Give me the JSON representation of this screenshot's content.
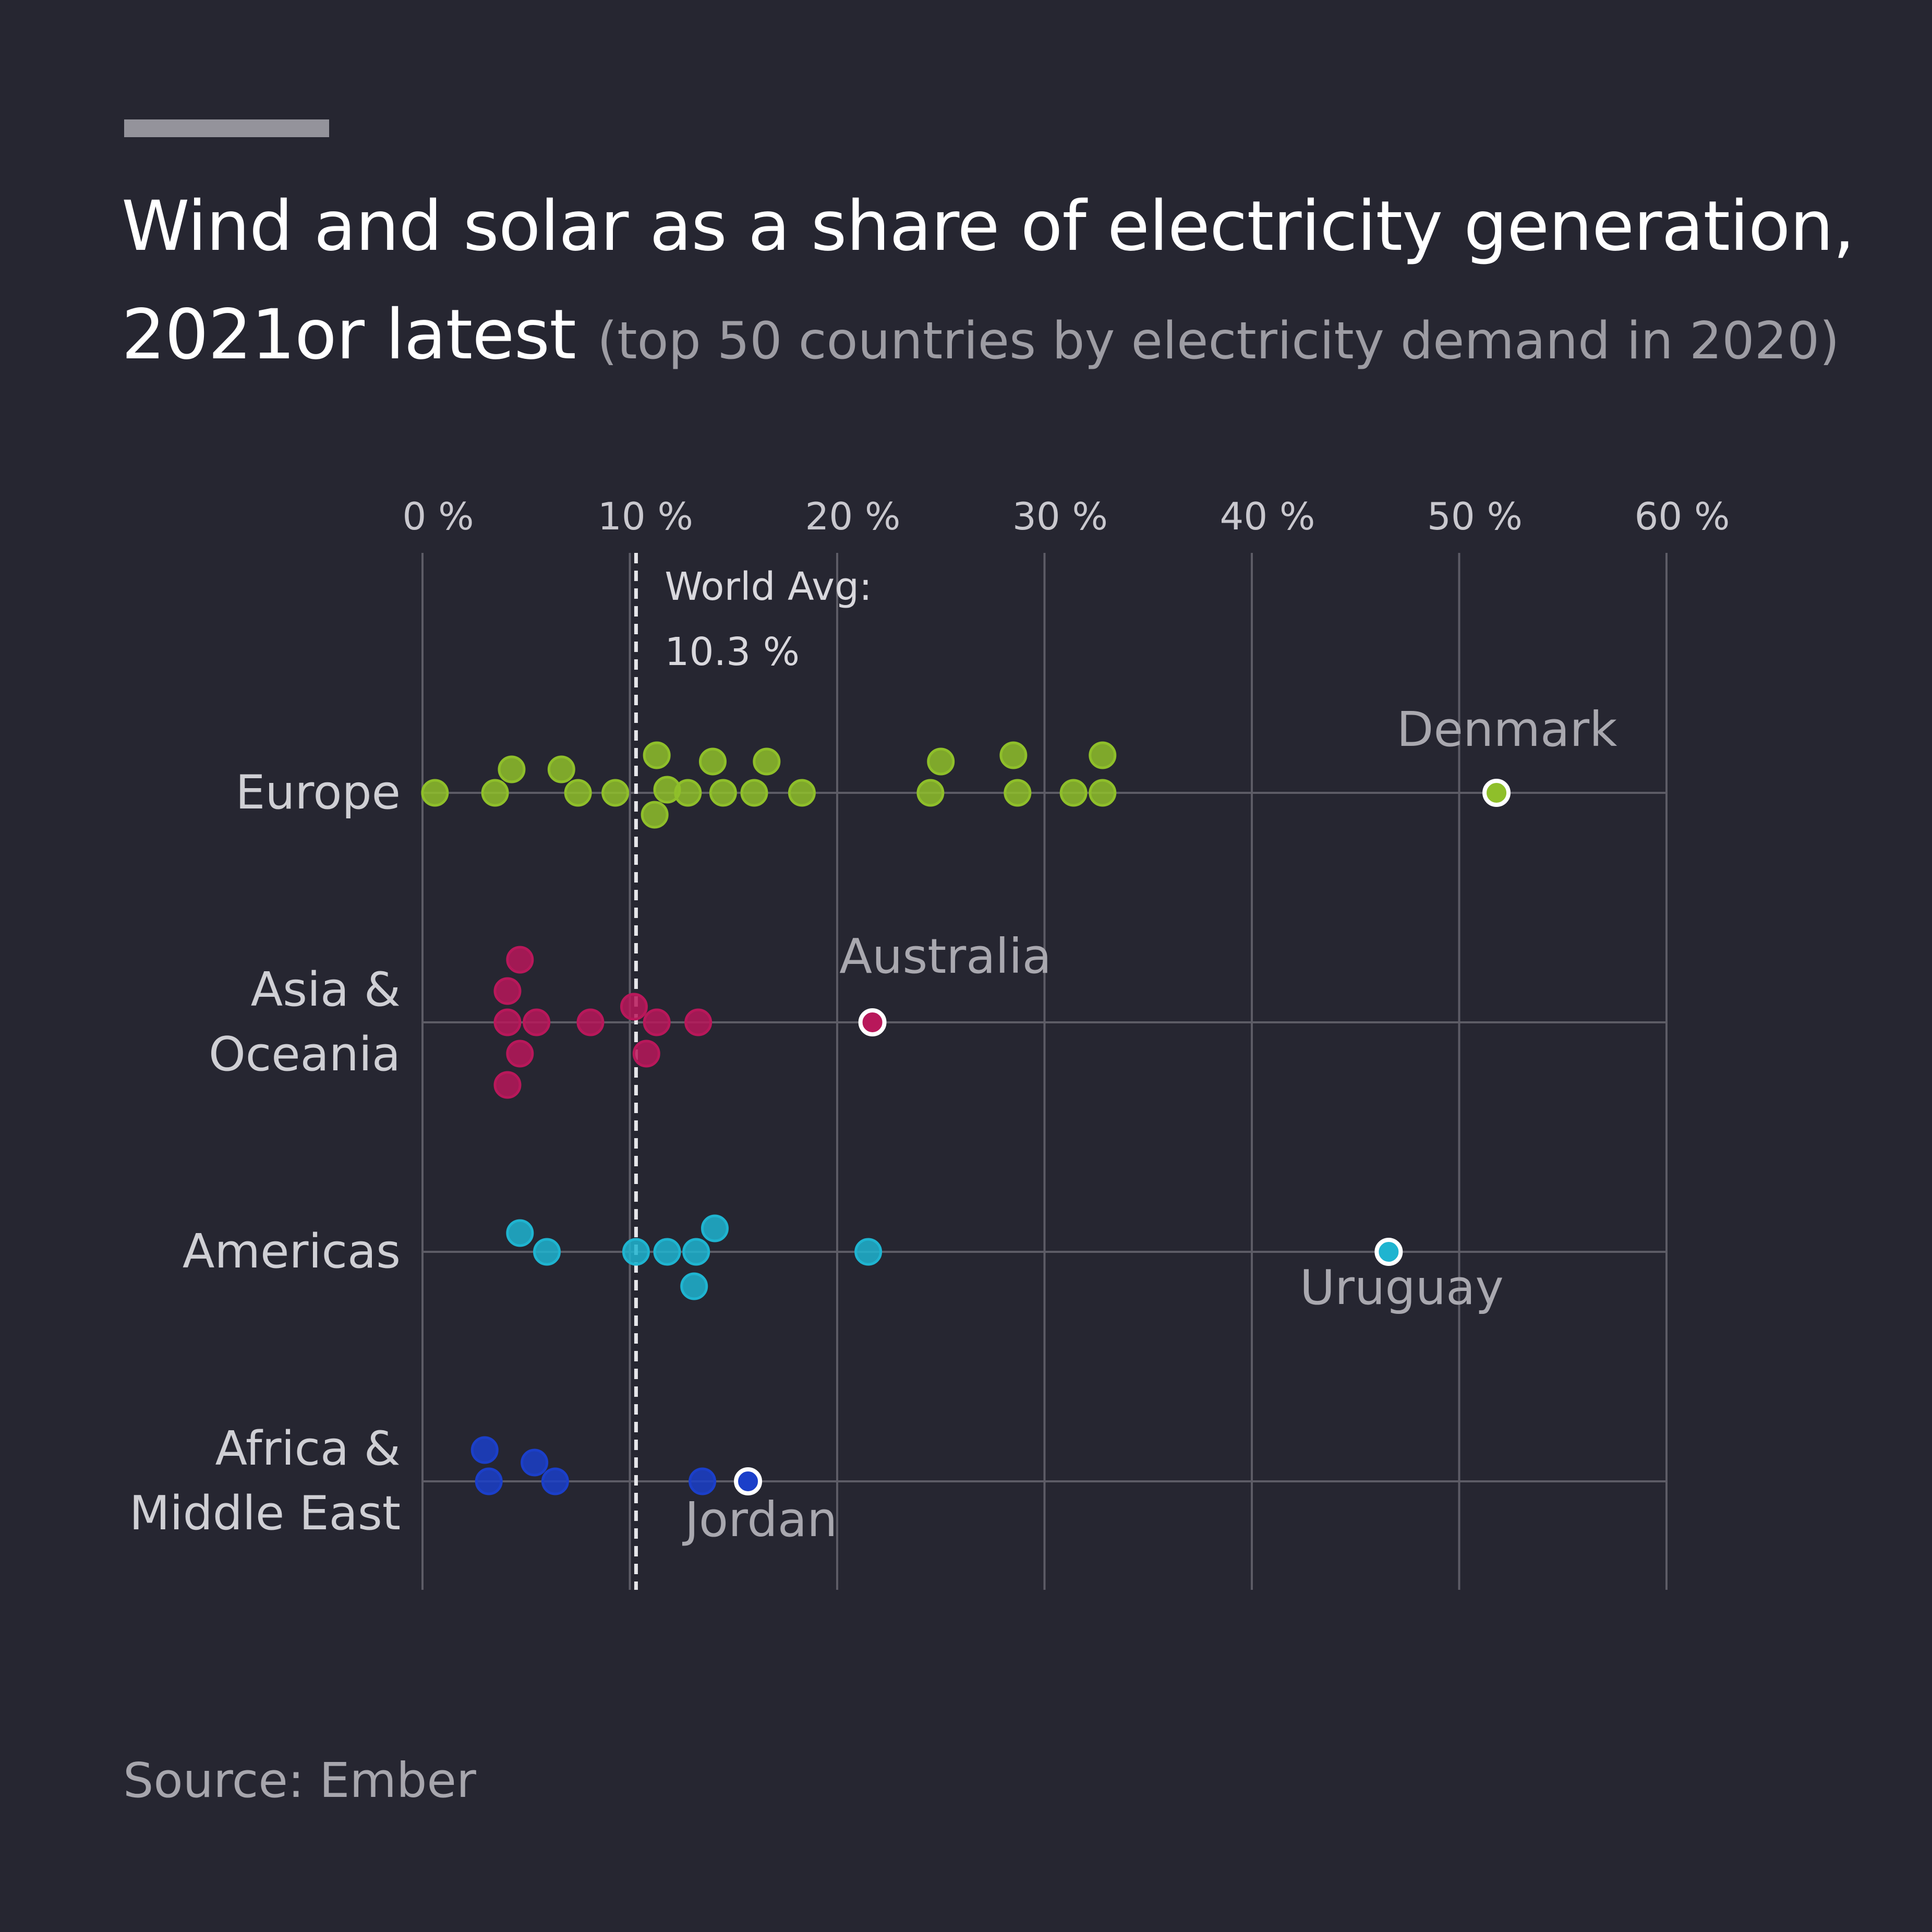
{
  "header": {
    "title_line1": "Wind and solar as a share of electricity generation,",
    "title_line2": "2021or latest",
    "subtitle": "(top 50 countries by electricity demand in 2020)"
  },
  "footer": {
    "source": "Source: Ember"
  },
  "chart_data": {
    "type": "scatter",
    "x_unit": "%",
    "xlim": [
      0,
      60
    ],
    "x_ticks": [
      0,
      10,
      20,
      30,
      40,
      50,
      60
    ],
    "x_tick_labels": [
      "0 %",
      "10 %",
      "20 %",
      "30 %",
      "40 %",
      "50 %",
      "60 %"
    ],
    "grid": true,
    "reference_line": {
      "label_line1": "World Avg:",
      "label_line2": "10.3 %",
      "value": 10.3,
      "style": "dashed"
    },
    "colors": {
      "background": "#262631",
      "grid": "#5d5c66",
      "Europe": "#8fbf2a",
      "Asia & Oceania": "#b8185a",
      "Americas": "#1fb4d0",
      "Africa & Middle East": "#1b3fc9"
    },
    "series": [
      {
        "name": "Europe",
        "label_lines": [
          "Europe"
        ],
        "points": [
          {
            "x": 0.6,
            "y": 0
          },
          {
            "x": 3.5,
            "y": 0
          },
          {
            "x": 4.3,
            "y": 0.75
          },
          {
            "x": 6.7,
            "y": 0.75
          },
          {
            "x": 7.5,
            "y": 0
          },
          {
            "x": 9.3,
            "y": 0
          },
          {
            "x": 11.3,
            "y": 1.2
          },
          {
            "x": 11.8,
            "y": 0.1
          },
          {
            "x": 11.2,
            "y": -0.7
          },
          {
            "x": 12.8,
            "y": 0
          },
          {
            "x": 14.0,
            "y": 1.0
          },
          {
            "x": 14.5,
            "y": 0
          },
          {
            "x": 16.0,
            "y": 0
          },
          {
            "x": 16.6,
            "y": 1.0
          },
          {
            "x": 18.3,
            "y": 0
          },
          {
            "x": 25.0,
            "y": 1.0
          },
          {
            "x": 24.5,
            "y": 0
          },
          {
            "x": 28.5,
            "y": 1.2
          },
          {
            "x": 28.7,
            "y": 0
          },
          {
            "x": 31.4,
            "y": 0
          },
          {
            "x": 32.8,
            "y": 1.2
          },
          {
            "x": 32.8,
            "y": 0
          },
          {
            "x": 51.8,
            "y": 0,
            "label": "Denmark"
          }
        ]
      },
      {
        "name": "Asia & Oceania",
        "label_lines": [
          "Asia &",
          "Oceania"
        ],
        "points": [
          {
            "x": 4.7,
            "y": 2.0
          },
          {
            "x": 4.1,
            "y": 1.0
          },
          {
            "x": 4.1,
            "y": 0
          },
          {
            "x": 5.5,
            "y": 0
          },
          {
            "x": 4.7,
            "y": -1.0
          },
          {
            "x": 4.1,
            "y": -2.0
          },
          {
            "x": 8.1,
            "y": 0
          },
          {
            "x": 10.2,
            "y": 0.5
          },
          {
            "x": 11.3,
            "y": 0
          },
          {
            "x": 10.8,
            "y": -1.0
          },
          {
            "x": 13.3,
            "y": 0
          },
          {
            "x": 21.7,
            "y": 0,
            "label": "Australia"
          }
        ]
      },
      {
        "name": "Americas",
        "label_lines": [
          "Americas"
        ],
        "points": [
          {
            "x": 4.7,
            "y": 0.6
          },
          {
            "x": 6.0,
            "y": 0
          },
          {
            "x": 10.3,
            "y": 0
          },
          {
            "x": 11.8,
            "y": 0
          },
          {
            "x": 13.2,
            "y": 0
          },
          {
            "x": 14.1,
            "y": 0.75
          },
          {
            "x": 13.1,
            "y": -1.1
          },
          {
            "x": 21.5,
            "y": 0
          },
          {
            "x": 46.6,
            "y": 0,
            "label": "Uruguay"
          }
        ]
      },
      {
        "name": "Africa & Middle East",
        "label_lines": [
          "Africa &",
          "Middle East"
        ],
        "points": [
          {
            "x": 3.0,
            "y": 1.0
          },
          {
            "x": 3.2,
            "y": 0
          },
          {
            "x": 5.4,
            "y": 0.6
          },
          {
            "x": 6.4,
            "y": 0
          },
          {
            "x": 13.5,
            "y": 0
          },
          {
            "x": 15.7,
            "y": 0,
            "label": "Jordan"
          }
        ]
      }
    ]
  }
}
